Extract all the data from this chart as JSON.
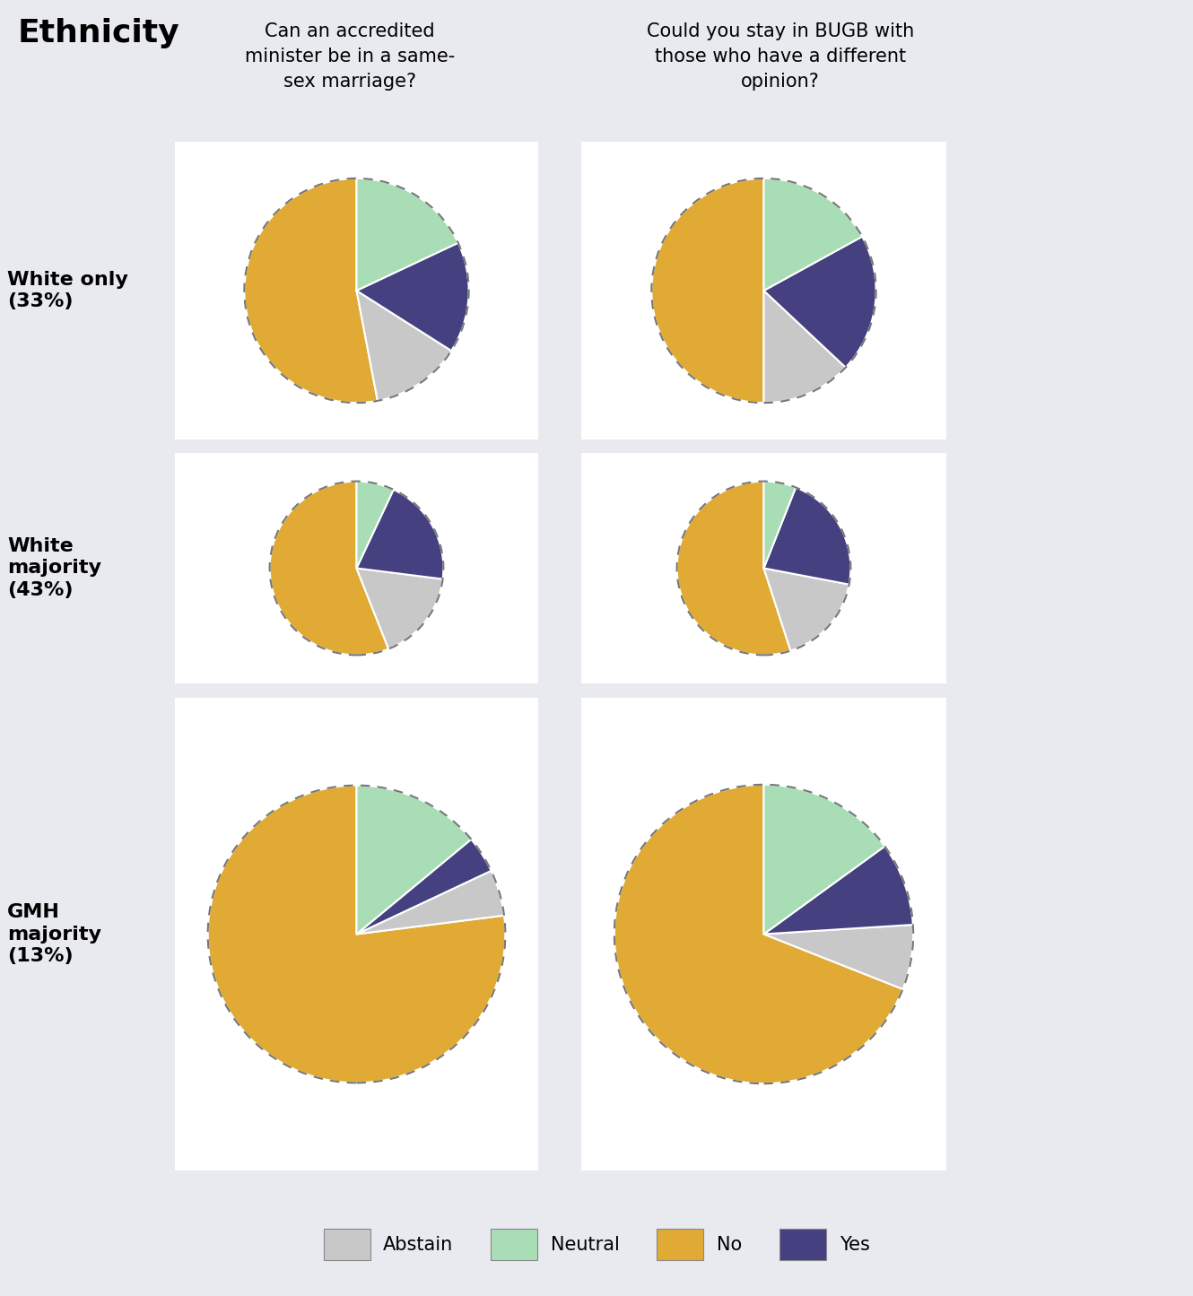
{
  "title": "Ethnicity",
  "col_headers": [
    "Can an accredited\nminister be in a same-\nsex marriage?",
    "Could you stay in BUGB with\nthose who have a different\nopinion?"
  ],
  "row_labels": [
    "White only\n(33%)",
    "White\nmajority\n(43%)",
    "GMH\nmajority\n(13%)"
  ],
  "colors": {
    "Abstain": "#c8c8c8",
    "Neutral": "#a8ddb5",
    "No": "#e0aa35",
    "Yes": "#454080"
  },
  "legend_labels": [
    "Abstain",
    "Neutral",
    "No",
    "Yes"
  ],
  "pies": [
    [
      {
        "No": 53,
        "Abstain": 13,
        "Yes": 16,
        "Neutral": 18
      },
      {
        "No": 50,
        "Abstain": 13,
        "Yes": 20,
        "Neutral": 17
      }
    ],
    [
      {
        "No": 56,
        "Abstain": 17,
        "Yes": 20,
        "Neutral": 7
      },
      {
        "No": 55,
        "Abstain": 17,
        "Yes": 22,
        "Neutral": 6
      }
    ],
    [
      {
        "No": 77,
        "Abstain": 5,
        "Yes": 4,
        "Neutral": 14
      },
      {
        "No": 69,
        "Abstain": 7,
        "Yes": 9,
        "Neutral": 15
      }
    ]
  ],
  "pie_order": [
    "No",
    "Abstain",
    "Yes",
    "Neutral"
  ],
  "background_color": "#e8eaf0",
  "cell_background": "#ffffff",
  "start_angle": 90
}
